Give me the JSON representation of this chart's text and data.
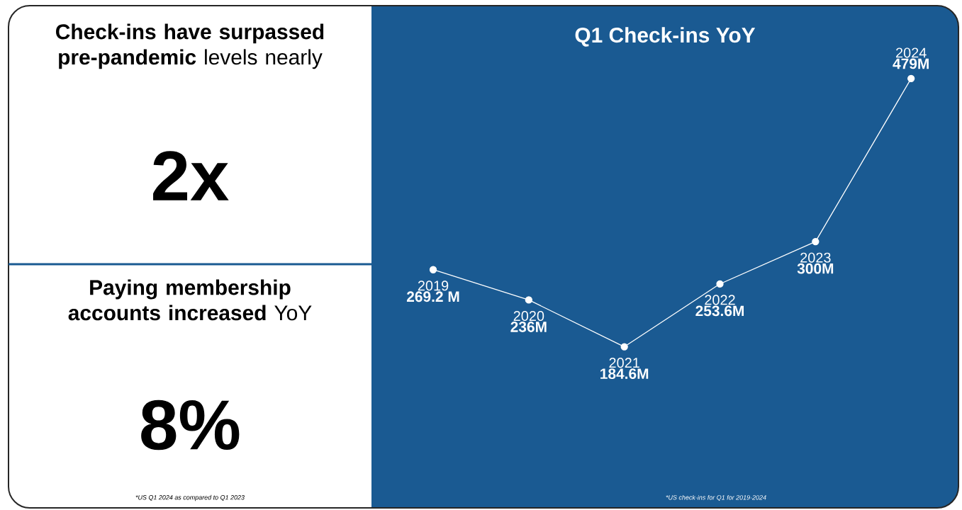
{
  "chart_data": [
    {
      "type": "other",
      "title": "**Check-ins have surpassed pre-pandemic** levels nearly",
      "annotations": [
        "2x"
      ]
    },
    {
      "type": "other",
      "title": "**Paying membership accounts increased** YoY",
      "annotations": [
        "8%",
        "*US Q1 2024 as compared to Q1 2023"
      ]
    },
    {
      "type": "line",
      "title": "Q1 Check-ins YoY",
      "categories": [
        "2019",
        "2020",
        "2021",
        "2022",
        "2023",
        "2024"
      ],
      "values": [
        269.2,
        236,
        184.6,
        253.6,
        300,
        479
      ],
      "value_labels": [
        "269.2 M",
        "236M",
        "184.6M",
        "253.6M",
        "300M",
        "479M"
      ],
      "color": "#ffffff",
      "marker": "circle",
      "annotations": [
        "*US check-ins for Q1 for 2019-2024"
      ]
    }
  ]
}
